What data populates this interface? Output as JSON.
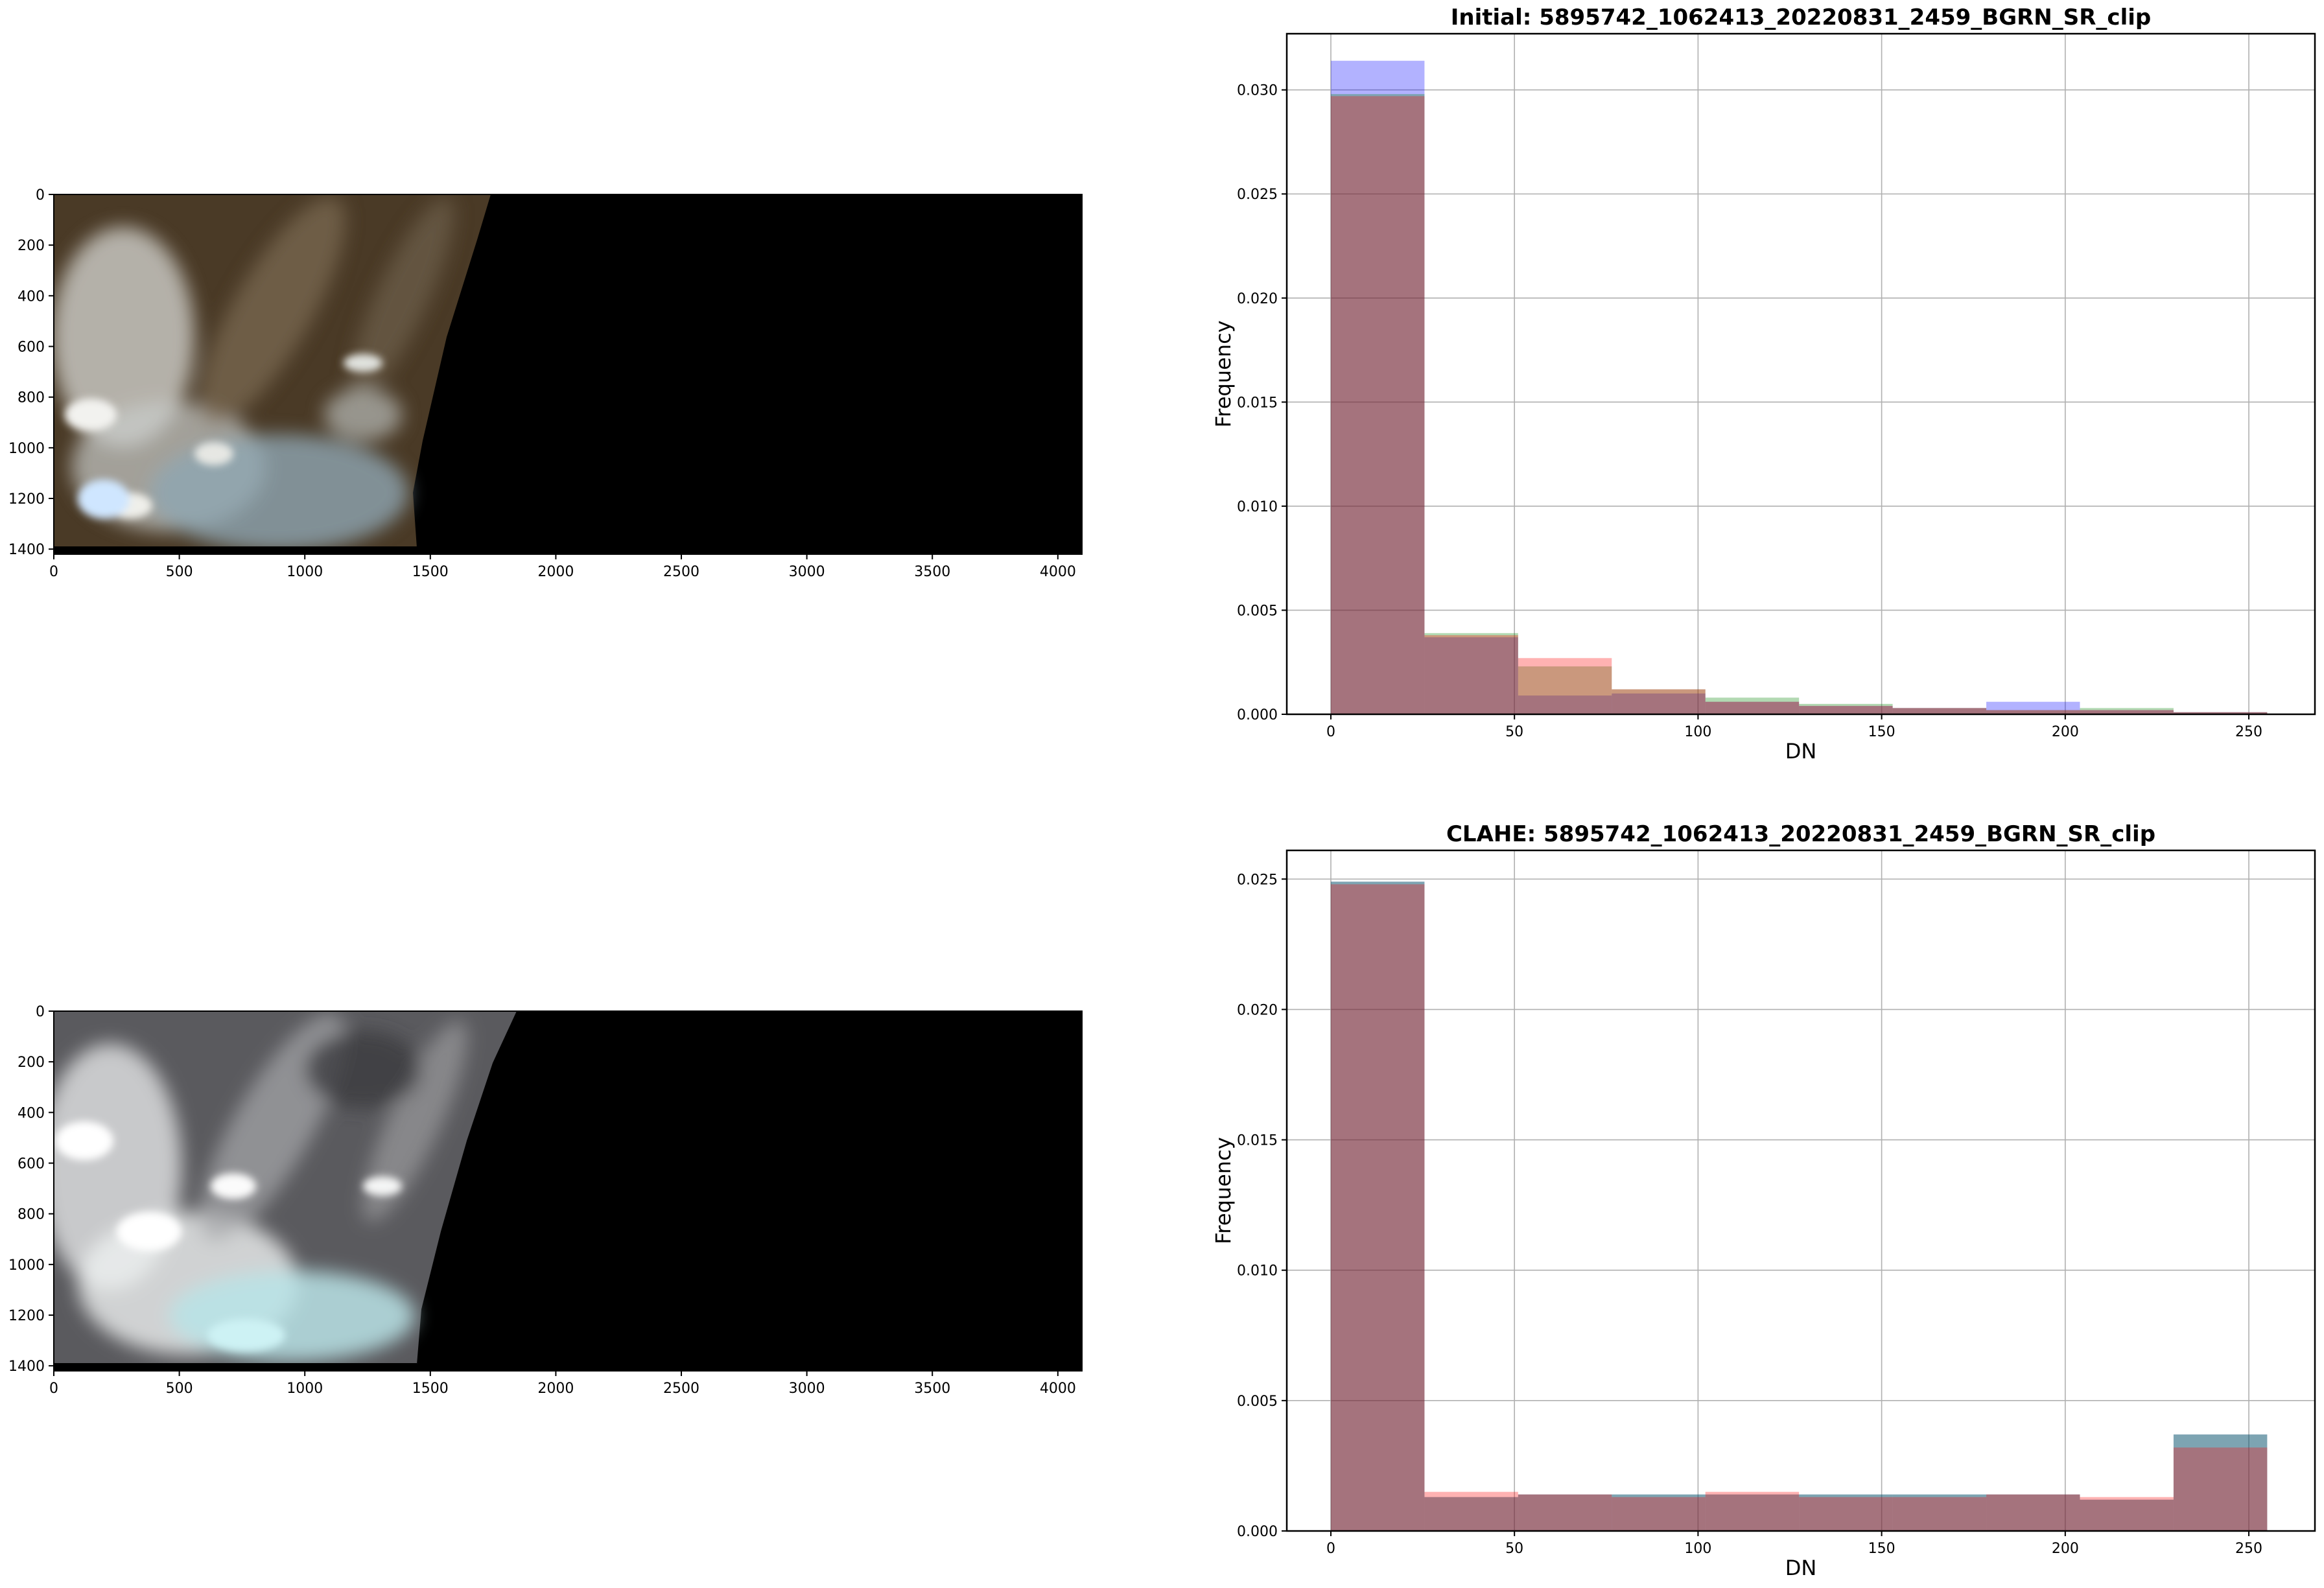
{
  "chart_data": [
    {
      "type": "image",
      "panel": "top-left",
      "xlim": [
        0,
        4096
      ],
      "ylim": [
        1420,
        0
      ],
      "xticks": [
        0,
        500,
        1000,
        1500,
        2000,
        2500,
        3000,
        3500,
        4000
      ],
      "yticks": [
        0,
        200,
        400,
        600,
        800,
        1000,
        1200,
        1400
      ],
      "palette": {
        "mountain": "#4a3a26",
        "snow": "#e6e8e6",
        "ice": "#9fb4bf",
        "nodata": "#000000"
      }
    },
    {
      "type": "bar",
      "panel": "top-right",
      "title": "Initial: 5895742_1062413_20220831_2459_BGRN_SR_clip",
      "xlabel": "DN",
      "ylabel": "Frequency",
      "xlim": [
        -12,
        268
      ],
      "ylim": [
        0,
        0.0327
      ],
      "xticks": [
        0,
        50,
        100,
        150,
        200,
        250
      ],
      "yticks": [
        0.0,
        0.005,
        0.01,
        0.015,
        0.02,
        0.025,
        0.03
      ],
      "ytick_labels": [
        "0.000",
        "0.005",
        "0.010",
        "0.015",
        "0.020",
        "0.025",
        "0.030"
      ],
      "grid": true,
      "bin_edges": [
        0,
        25.5,
        51,
        76.5,
        102,
        127.5,
        153,
        178.5,
        204,
        229.5,
        255
      ],
      "series": [
        {
          "color": "#0000ff",
          "values": [
            0.0314,
            0.0037,
            0.0009,
            0.001,
            0.0006,
            0.0004,
            0.0003,
            0.0006,
            0.0002,
            0.0001
          ]
        },
        {
          "color": "#008000",
          "values": [
            0.0298,
            0.0039,
            0.0023,
            0.0012,
            0.0008,
            0.0005,
            0.0003,
            0.0002,
            0.0003,
            0.0001
          ]
        },
        {
          "color": "#ff0000",
          "values": [
            0.0297,
            0.0038,
            0.0027,
            0.0012,
            0.0006,
            0.0004,
            0.0003,
            0.0002,
            0.0002,
            0.0001
          ]
        }
      ]
    },
    {
      "type": "image",
      "panel": "bottom-left",
      "xlim": [
        0,
        4096
      ],
      "ylim": [
        1420,
        0
      ],
      "xticks": [
        0,
        500,
        1000,
        1500,
        2000,
        2500,
        3000,
        3500,
        4000
      ],
      "yticks": [
        0,
        200,
        400,
        600,
        800,
        1000,
        1200,
        1400
      ],
      "palette": {
        "mountain": "#5a5a5e",
        "snow": "#f2f4f4",
        "ice": "#b9e3e6",
        "nodata": "#000000"
      }
    },
    {
      "type": "bar",
      "panel": "bottom-right",
      "title": "CLAHE: 5895742_1062413_20220831_2459_BGRN_SR_clip",
      "xlabel": "DN",
      "ylabel": "Frequency",
      "xlim": [
        -12,
        268
      ],
      "ylim": [
        0,
        0.0261
      ],
      "xticks": [
        0,
        50,
        100,
        150,
        200,
        250
      ],
      "yticks": [
        0.0,
        0.005,
        0.01,
        0.015,
        0.02,
        0.025
      ],
      "ytick_labels": [
        "0.000",
        "0.005",
        "0.010",
        "0.015",
        "0.020",
        "0.025"
      ],
      "grid": true,
      "bin_edges": [
        0,
        25.5,
        51,
        76.5,
        102,
        127.5,
        153,
        178.5,
        204,
        229.5,
        255
      ],
      "series": [
        {
          "color": "#0000ff",
          "values": [
            0.0249,
            0.0013,
            0.0014,
            0.0014,
            0.0014,
            0.0014,
            0.0014,
            0.0014,
            0.0012,
            0.0037
          ]
        },
        {
          "color": "#008000",
          "values": [
            0.0249,
            0.0013,
            0.0014,
            0.0014,
            0.0014,
            0.0014,
            0.0014,
            0.0014,
            0.0012,
            0.0037
          ]
        },
        {
          "color": "#ff0000",
          "values": [
            0.0248,
            0.0015,
            0.0014,
            0.0013,
            0.0015,
            0.0013,
            0.0013,
            0.0014,
            0.0013,
            0.0032
          ]
        }
      ]
    }
  ]
}
